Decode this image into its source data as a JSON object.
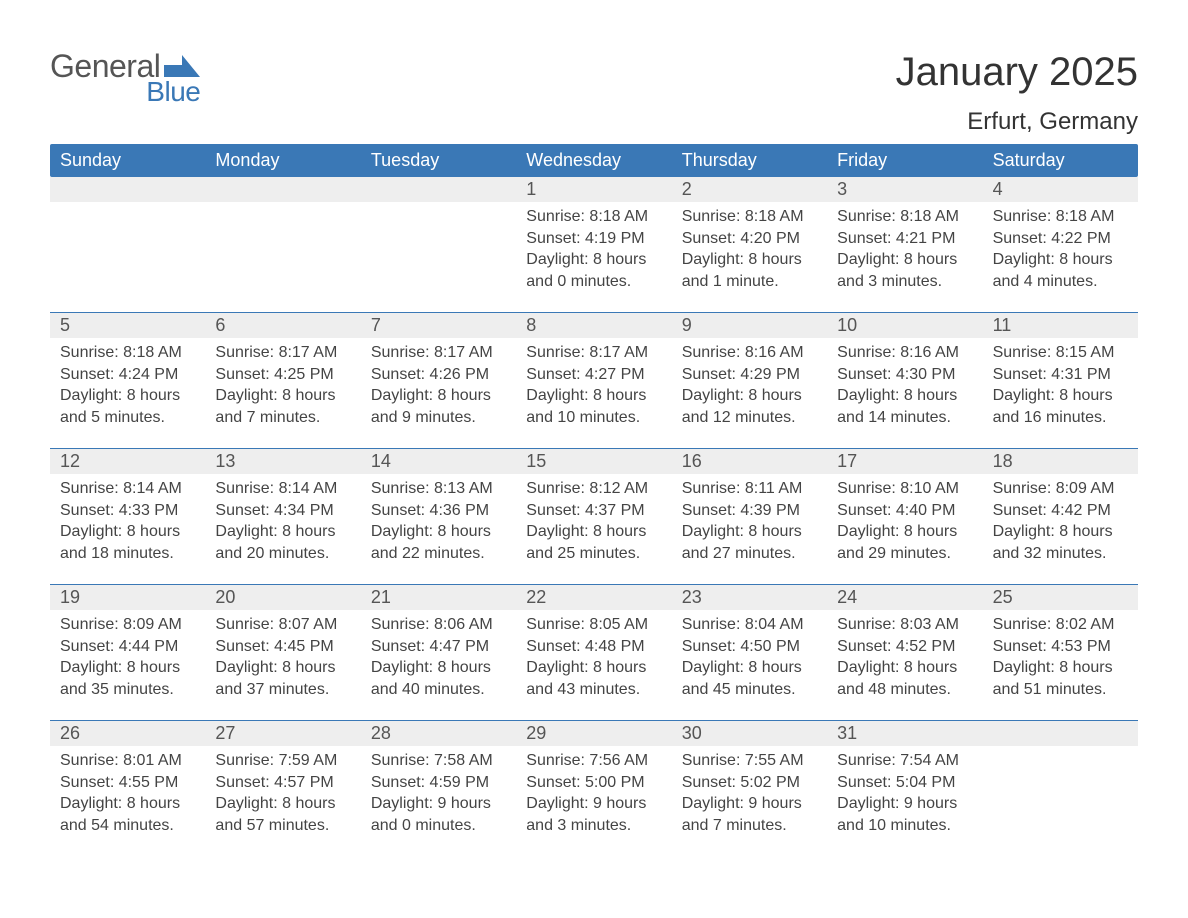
{
  "brand": {
    "name1": "General",
    "name2": "Blue",
    "text_color": "#555555",
    "accent_color": "#3a78b6"
  },
  "title": "January 2025",
  "location": "Erfurt, Germany",
  "header_bg": "#3a78b6",
  "stripe_bg": "#eeeeee",
  "weekdays": [
    "Sunday",
    "Monday",
    "Tuesday",
    "Wednesday",
    "Thursday",
    "Friday",
    "Saturday"
  ],
  "weeks": [
    [
      null,
      null,
      null,
      {
        "n": "1",
        "sunrise": "8:18 AM",
        "sunset": "4:19 PM",
        "day_h": "8",
        "day_m": "0 minutes"
      },
      {
        "n": "2",
        "sunrise": "8:18 AM",
        "sunset": "4:20 PM",
        "day_h": "8",
        "day_m": "1 minute"
      },
      {
        "n": "3",
        "sunrise": "8:18 AM",
        "sunset": "4:21 PM",
        "day_h": "8",
        "day_m": "3 minutes"
      },
      {
        "n": "4",
        "sunrise": "8:18 AM",
        "sunset": "4:22 PM",
        "day_h": "8",
        "day_m": "4 minutes"
      }
    ],
    [
      {
        "n": "5",
        "sunrise": "8:18 AM",
        "sunset": "4:24 PM",
        "day_h": "8",
        "day_m": "5 minutes"
      },
      {
        "n": "6",
        "sunrise": "8:17 AM",
        "sunset": "4:25 PM",
        "day_h": "8",
        "day_m": "7 minutes"
      },
      {
        "n": "7",
        "sunrise": "8:17 AM",
        "sunset": "4:26 PM",
        "day_h": "8",
        "day_m": "9 minutes"
      },
      {
        "n": "8",
        "sunrise": "8:17 AM",
        "sunset": "4:27 PM",
        "day_h": "8",
        "day_m": "10 minutes"
      },
      {
        "n": "9",
        "sunrise": "8:16 AM",
        "sunset": "4:29 PM",
        "day_h": "8",
        "day_m": "12 minutes"
      },
      {
        "n": "10",
        "sunrise": "8:16 AM",
        "sunset": "4:30 PM",
        "day_h": "8",
        "day_m": "14 minutes"
      },
      {
        "n": "11",
        "sunrise": "8:15 AM",
        "sunset": "4:31 PM",
        "day_h": "8",
        "day_m": "16 minutes"
      }
    ],
    [
      {
        "n": "12",
        "sunrise": "8:14 AM",
        "sunset": "4:33 PM",
        "day_h": "8",
        "day_m": "18 minutes"
      },
      {
        "n": "13",
        "sunrise": "8:14 AM",
        "sunset": "4:34 PM",
        "day_h": "8",
        "day_m": "20 minutes"
      },
      {
        "n": "14",
        "sunrise": "8:13 AM",
        "sunset": "4:36 PM",
        "day_h": "8",
        "day_m": "22 minutes"
      },
      {
        "n": "15",
        "sunrise": "8:12 AM",
        "sunset": "4:37 PM",
        "day_h": "8",
        "day_m": "25 minutes"
      },
      {
        "n": "16",
        "sunrise": "8:11 AM",
        "sunset": "4:39 PM",
        "day_h": "8",
        "day_m": "27 minutes"
      },
      {
        "n": "17",
        "sunrise": "8:10 AM",
        "sunset": "4:40 PM",
        "day_h": "8",
        "day_m": "29 minutes"
      },
      {
        "n": "18",
        "sunrise": "8:09 AM",
        "sunset": "4:42 PM",
        "day_h": "8",
        "day_m": "32 minutes"
      }
    ],
    [
      {
        "n": "19",
        "sunrise": "8:09 AM",
        "sunset": "4:44 PM",
        "day_h": "8",
        "day_m": "35 minutes"
      },
      {
        "n": "20",
        "sunrise": "8:07 AM",
        "sunset": "4:45 PM",
        "day_h": "8",
        "day_m": "37 minutes"
      },
      {
        "n": "21",
        "sunrise": "8:06 AM",
        "sunset": "4:47 PM",
        "day_h": "8",
        "day_m": "40 minutes"
      },
      {
        "n": "22",
        "sunrise": "8:05 AM",
        "sunset": "4:48 PM",
        "day_h": "8",
        "day_m": "43 minutes"
      },
      {
        "n": "23",
        "sunrise": "8:04 AM",
        "sunset": "4:50 PM",
        "day_h": "8",
        "day_m": "45 minutes"
      },
      {
        "n": "24",
        "sunrise": "8:03 AM",
        "sunset": "4:52 PM",
        "day_h": "8",
        "day_m": "48 minutes"
      },
      {
        "n": "25",
        "sunrise": "8:02 AM",
        "sunset": "4:53 PM",
        "day_h": "8",
        "day_m": "51 minutes"
      }
    ],
    [
      {
        "n": "26",
        "sunrise": "8:01 AM",
        "sunset": "4:55 PM",
        "day_h": "8",
        "day_m": "54 minutes"
      },
      {
        "n": "27",
        "sunrise": "7:59 AM",
        "sunset": "4:57 PM",
        "day_h": "8",
        "day_m": "57 minutes"
      },
      {
        "n": "28",
        "sunrise": "7:58 AM",
        "sunset": "4:59 PM",
        "day_h": "9",
        "day_m": "0 minutes"
      },
      {
        "n": "29",
        "sunrise": "7:56 AM",
        "sunset": "5:00 PM",
        "day_h": "9",
        "day_m": "3 minutes"
      },
      {
        "n": "30",
        "sunrise": "7:55 AM",
        "sunset": "5:02 PM",
        "day_h": "9",
        "day_m": "7 minutes"
      },
      {
        "n": "31",
        "sunrise": "7:54 AM",
        "sunset": "5:04 PM",
        "day_h": "9",
        "day_m": "10 minutes"
      },
      null
    ]
  ]
}
